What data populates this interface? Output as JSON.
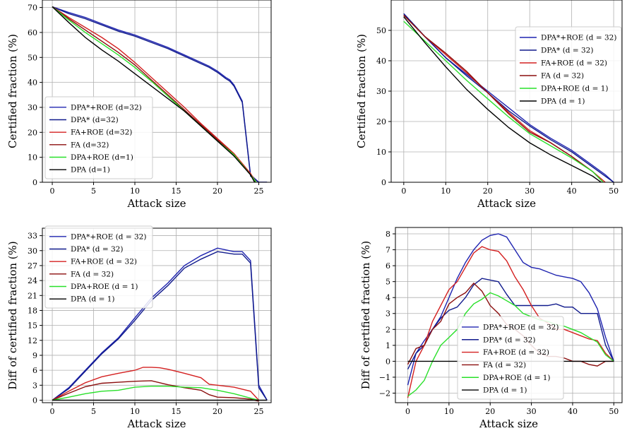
{
  "colors": {
    "dpa_star_roe": "#1f24b0",
    "dpa_star": "#101a8c",
    "fa_roe": "#d42020",
    "fa": "#8b0e0e",
    "dpa_roe": "#29e02a",
    "dpa": "#000000"
  },
  "chart_data": [
    {
      "type": "line",
      "xlabel": "Attack size",
      "ylabel": "Certified fraction (%)",
      "xlim": [
        -1.2,
        26.5
      ],
      "ylim": [
        0,
        73
      ],
      "xticks": [
        0,
        5,
        10,
        15,
        20,
        25
      ],
      "yticks": [
        0,
        10,
        20,
        30,
        40,
        50,
        60,
        70
      ],
      "grid": true,
      "legend_position": "lower-left",
      "series": [
        {
          "name": "DPA*+ROE (d=32)",
          "color": "#1f24b0",
          "x": [
            0,
            2,
            4,
            6,
            8,
            10,
            12,
            14,
            16,
            18,
            19,
            20,
            21,
            21.5,
            22,
            23,
            24,
            25,
            26
          ],
          "y": [
            70.3,
            68,
            66,
            63.5,
            61,
            59,
            56.5,
            54,
            51,
            48,
            46.5,
            44.5,
            42,
            41,
            39,
            32.5,
            3,
            0,
            0
          ]
        },
        {
          "name": "DPA* (d=32)",
          "color": "#101a8c",
          "x": [
            0,
            2,
            4,
            6,
            8,
            10,
            12,
            14,
            16,
            18,
            19,
            20,
            21,
            21.5,
            22,
            23,
            24,
            25,
            26
          ],
          "y": [
            70.3,
            67.5,
            65.5,
            63,
            60.5,
            58.5,
            56,
            53.5,
            50.5,
            47.5,
            46,
            44,
            41.5,
            40.5,
            38.5,
            32,
            2.5,
            0,
            0
          ]
        },
        {
          "name": "FA+ROE (d=32)",
          "color": "#d42020",
          "x": [
            0,
            2,
            4,
            6,
            8,
            10,
            12,
            14,
            16,
            18,
            20,
            22,
            24,
            24.7
          ],
          "y": [
            70.3,
            66,
            62,
            58,
            53.5,
            48,
            42,
            36,
            30,
            23.5,
            17.5,
            11.5,
            3.5,
            0
          ]
        },
        {
          "name": "FA (d=32)",
          "color": "#8b0e0e",
          "x": [
            0,
            2,
            4,
            6,
            8,
            10,
            12,
            14,
            16,
            18,
            20,
            22,
            24,
            24.6
          ],
          "y": [
            70.3,
            65.5,
            61,
            56.5,
            52,
            47,
            41,
            35,
            29,
            23,
            17,
            11,
            3,
            0
          ]
        },
        {
          "name": "DPA+ROE (d=1)",
          "color": "#29e02a",
          "x": [
            0,
            2,
            4,
            6,
            8,
            10,
            12,
            14,
            16,
            18,
            20,
            22,
            24,
            24.7
          ],
          "y": [
            70.3,
            65,
            60,
            55.5,
            51,
            46,
            40.5,
            34.5,
            28.5,
            22.5,
            16.5,
            11,
            3,
            0
          ]
        },
        {
          "name": "DPA (d=1)",
          "color": "#000000",
          "x": [
            0,
            2,
            4,
            6,
            8,
            10,
            12,
            14,
            16,
            18,
            20,
            22,
            24,
            24.5
          ],
          "y": [
            70.3,
            64,
            58,
            53,
            48.5,
            43.5,
            38.5,
            33.5,
            28.5,
            22.5,
            16.5,
            10.5,
            3,
            0
          ]
        }
      ]
    },
    {
      "type": "line",
      "xlabel": "Attack size",
      "ylabel": "Certified fraction (%)",
      "xlim": [
        -3,
        52
      ],
      "ylim": [
        0,
        60
      ],
      "xticks": [
        0,
        10,
        20,
        30,
        40,
        50
      ],
      "yticks": [
        0,
        10,
        20,
        30,
        40,
        50
      ],
      "grid": true,
      "legend_position": "top-right",
      "series": [
        {
          "name": "DPA*+ROE (d = 32)",
          "color": "#1f24b0",
          "x": [
            0,
            5,
            10,
            15,
            20,
            25,
            30,
            35,
            40,
            45,
            48,
            50
          ],
          "y": [
            55.5,
            48,
            41,
            35.5,
            30,
            24.5,
            19,
            14.5,
            10.5,
            5.5,
            2.5,
            0
          ]
        },
        {
          "name": "DPA* (d = 32)",
          "color": "#101a8c",
          "x": [
            0,
            5,
            10,
            15,
            20,
            25,
            30,
            35,
            40,
            45,
            48,
            50
          ],
          "y": [
            55.5,
            48,
            41,
            35,
            29.5,
            23.5,
            18.5,
            14,
            10,
            5,
            2,
            0
          ]
        },
        {
          "name": "FA+ROE (d = 32)",
          "color": "#d42020",
          "x": [
            0,
            5,
            10,
            15,
            20,
            25,
            30,
            35,
            40,
            45,
            48
          ],
          "y": [
            55,
            48,
            42,
            36,
            29.5,
            23,
            17,
            13,
            8.5,
            3.5,
            0
          ]
        },
        {
          "name": "FA (d = 32)",
          "color": "#8b0e0e",
          "x": [
            0,
            5,
            10,
            15,
            20,
            25,
            30,
            35,
            40,
            45,
            47.5
          ],
          "y": [
            55,
            48,
            42.5,
            36.5,
            29.5,
            22.5,
            16.5,
            13,
            8.5,
            3.5,
            0
          ]
        },
        {
          "name": "DPA+ROE (d = 1)",
          "color": "#29e02a",
          "x": [
            0,
            5,
            10,
            15,
            20,
            25,
            30,
            35,
            40,
            45,
            47.5
          ],
          "y": [
            53,
            46.5,
            40,
            33.5,
            27.5,
            21.5,
            16,
            12,
            8,
            3.5,
            0
          ]
        },
        {
          "name": "DPA (d = 1)",
          "color": "#000000",
          "x": [
            0,
            5,
            10,
            15,
            20,
            25,
            30,
            35,
            40,
            45,
            47
          ],
          "y": [
            54.5,
            46,
            38,
            30.5,
            24,
            18,
            13,
            9,
            5.5,
            2,
            0
          ]
        }
      ]
    },
    {
      "type": "line",
      "xlabel": "Attack size",
      "ylabel": "Diff of certified fraction (%)",
      "xlim": [
        -1.2,
        26.5
      ],
      "ylim": [
        -0.5,
        34.5
      ],
      "xticks": [
        0,
        5,
        10,
        15,
        20,
        25
      ],
      "yticks": [
        0,
        3,
        6,
        9,
        12,
        15,
        18,
        21,
        24,
        27,
        30,
        33
      ],
      "grid": true,
      "legend_position": "top-left",
      "series": [
        {
          "name": "DPA*+ROE (d = 32)",
          "color": "#1f24b0",
          "x": [
            0,
            2,
            4,
            6,
            8,
            10,
            12,
            14,
            16,
            18,
            20,
            22,
            23,
            24,
            25,
            26
          ],
          "y": [
            0,
            2.5,
            6,
            9.5,
            12.5,
            16.5,
            20.5,
            23.5,
            27,
            29,
            30.5,
            29.8,
            29.8,
            28,
            3,
            0
          ]
        },
        {
          "name": "DPA* (d = 32)",
          "color": "#101a8c",
          "x": [
            0,
            2,
            4,
            6,
            8,
            10,
            12,
            14,
            16,
            18,
            20,
            22,
            23,
            24,
            25,
            26
          ],
          "y": [
            0,
            2.3,
            5.8,
            9.3,
            12.3,
            16,
            20,
            23,
            26.5,
            28.3,
            29.8,
            29.3,
            29.3,
            27.5,
            2.5,
            0
          ]
        },
        {
          "name": "FA+ROE (d = 32)",
          "color": "#d42020",
          "x": [
            0,
            2,
            4,
            6,
            8,
            10,
            11,
            12,
            13,
            14,
            16,
            18,
            19,
            20,
            22,
            24,
            25
          ],
          "y": [
            0,
            1.8,
            3.5,
            4.7,
            5.4,
            6,
            6.6,
            6.6,
            6.5,
            6.2,
            5.4,
            4.5,
            3.2,
            3.0,
            2.6,
            1.8,
            0
          ]
        },
        {
          "name": "FA (d = 32)",
          "color": "#8b0e0e",
          "x": [
            0,
            2,
            4,
            6,
            8,
            10,
            12,
            14,
            16,
            18,
            19,
            20,
            22,
            24,
            25
          ],
          "y": [
            0,
            1.4,
            2.7,
            3.4,
            3.6,
            3.8,
            3.9,
            3.1,
            2.5,
            2.0,
            1.1,
            0.6,
            0.5,
            0.2,
            -0.2
          ]
        },
        {
          "name": "DPA+ROE (d = 1)",
          "color": "#29e02a",
          "x": [
            0,
            2,
            4,
            6,
            8,
            10,
            12,
            14,
            16,
            18,
            20,
            22,
            24,
            25
          ],
          "y": [
            0,
            0.6,
            1.3,
            1.8,
            2.0,
            2.6,
            2.8,
            2.8,
            2.6,
            2.5,
            2.0,
            1.3,
            0.4,
            0
          ]
        },
        {
          "name": "DPA (d = 1)",
          "color": "#000000",
          "x": [
            0,
            26
          ],
          "y": [
            0,
            0
          ]
        }
      ]
    },
    {
      "type": "line",
      "xlabel": "Attack size",
      "ylabel": "Diff of certified fraction (%)",
      "xlim": [
        -3,
        52
      ],
      "ylim": [
        -2.6,
        8.4
      ],
      "xticks": [
        0,
        10,
        20,
        30,
        40,
        50
      ],
      "yticks": [
        -2,
        -1,
        0,
        1,
        2,
        3,
        4,
        5,
        6,
        7,
        8
      ],
      "grid": true,
      "legend_position": "center",
      "series": [
        {
          "name": "DPA*+ROE (d = 32)",
          "color": "#1f24b0",
          "x": [
            0,
            2,
            4,
            6,
            8,
            10,
            12,
            14,
            16,
            18,
            20,
            22,
            24,
            26,
            28,
            30,
            32,
            34,
            36,
            38,
            40,
            42,
            44,
            46,
            48,
            50
          ],
          "y": [
            -1.5,
            0.5,
            1.3,
            2.0,
            2.8,
            4.0,
            5.2,
            6.2,
            7.0,
            7.6,
            7.9,
            8.0,
            7.8,
            7.0,
            6.2,
            5.9,
            5.8,
            5.6,
            5.4,
            5.3,
            5.2,
            5.0,
            4.3,
            3.3,
            1.5,
            0
          ]
        },
        {
          "name": "DPA* (d = 32)",
          "color": "#101a8c",
          "x": [
            0,
            2,
            4,
            6,
            8,
            10,
            12,
            14,
            16,
            18,
            20,
            22,
            24,
            26,
            28,
            30,
            32,
            34,
            36,
            38,
            40,
            42,
            44,
            46,
            48,
            50
          ],
          "y": [
            -0.5,
            0.5,
            1.0,
            2.0,
            2.7,
            3.2,
            3.4,
            4.0,
            4.8,
            5.2,
            5.1,
            5.0,
            4.2,
            3.5,
            3.5,
            3.5,
            3.5,
            3.5,
            3.6,
            3.4,
            3.4,
            3.0,
            3.0,
            3.0,
            1.0,
            0
          ]
        },
        {
          "name": "FA+ROE (d = 32)",
          "color": "#d42020",
          "x": [
            0,
            2,
            4,
            6,
            8,
            10,
            12,
            14,
            16,
            18,
            20,
            22,
            24,
            26,
            28,
            30,
            32,
            34,
            36,
            38,
            40,
            42,
            44,
            46,
            48,
            50
          ],
          "y": [
            -2.3,
            0,
            1.0,
            2.5,
            3.5,
            4.5,
            5.0,
            5.9,
            6.8,
            7.2,
            7.0,
            6.9,
            6.3,
            5.3,
            4.5,
            3.5,
            2.7,
            2.4,
            2.0,
            2.0,
            1.8,
            1.6,
            1.4,
            1.3,
            0.5,
            0
          ]
        },
        {
          "name": "FA (d = 32)",
          "color": "#8b0e0e",
          "x": [
            0,
            2,
            4,
            6,
            8,
            10,
            12,
            14,
            16,
            18,
            20,
            22,
            24,
            26,
            28,
            30,
            32,
            34,
            36,
            38,
            40,
            42,
            44,
            46,
            48,
            50
          ],
          "y": [
            -0.2,
            0.8,
            1.0,
            2.0,
            2.5,
            3.6,
            4.0,
            4.3,
            4.9,
            4.4,
            3.5,
            3.0,
            2.3,
            2.0,
            1.6,
            1.0,
            0.5,
            0.3,
            0.3,
            0.2,
            0,
            0,
            -0.2,
            -0.3,
            0,
            0
          ]
        },
        {
          "name": "DPA+ROE (d = 1)",
          "color": "#29e02a",
          "x": [
            0,
            2,
            4,
            6,
            8,
            10,
            12,
            14,
            16,
            18,
            20,
            22,
            24,
            26,
            28,
            30,
            32,
            34,
            36,
            38,
            40,
            42,
            44,
            46,
            48,
            50
          ],
          "y": [
            -2.2,
            -1.8,
            -1.2,
            0,
            1.0,
            1.5,
            2.0,
            3.0,
            3.6,
            3.9,
            4.3,
            4.1,
            3.8,
            3.5,
            3.0,
            2.8,
            2.6,
            2.5,
            2.3,
            2.2,
            2.0,
            1.8,
            1.5,
            1.2,
            0.4,
            0
          ]
        },
        {
          "name": "DPA (d = 1)",
          "color": "#000000",
          "x": [
            0,
            50
          ],
          "y": [
            0,
            0
          ]
        }
      ]
    }
  ],
  "legend_labels": [
    {
      "name": "DPA*+ROE",
      "d": "(d = 32)"
    },
    {
      "name": "DPA*",
      "d": "(d = 32)"
    },
    {
      "name": "FA+ROE",
      "d": "(d = 32)"
    },
    {
      "name": "FA",
      "d": "(d = 32)"
    },
    {
      "name": "DPA+ROE",
      "d": "(d = 1)"
    },
    {
      "name": "DPA",
      "d": "(d = 1)"
    }
  ]
}
